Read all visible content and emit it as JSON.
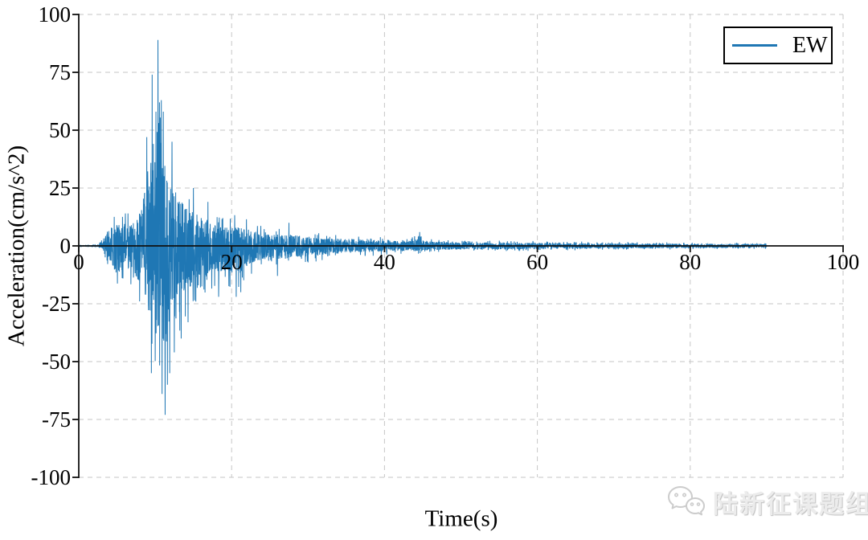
{
  "chart_data": {
    "type": "line",
    "title": "",
    "xlabel": "Time(s)",
    "ylabel": "Acceleration(cm/s^2)",
    "xlim": [
      0,
      100
    ],
    "ylim": [
      -100,
      100
    ],
    "xticks": [
      0,
      20,
      40,
      60,
      80,
      100
    ],
    "yticks": [
      100,
      75,
      50,
      25,
      0,
      -25,
      -50,
      -75,
      -100
    ],
    "grid": true,
    "grid_style": "dashed",
    "grid_color": "#c6c6c6",
    "axis_color": "#111111",
    "legend": {
      "position": "upper right",
      "entries": [
        {
          "label": "EW",
          "color": "#1f77b4"
        }
      ]
    },
    "series": [
      {
        "name": "EW",
        "color": "#1f77b4",
        "signal": {
          "t_start": 0,
          "t_end": 90,
          "dt": 0.02,
          "peak_acceleration": 89,
          "min_acceleration": -73,
          "peak_time_s": 10.35,
          "envelope": [
            [
              0,
              0.15,
              0.15
            ],
            [
              2.6,
              0.5,
              0.5
            ],
            [
              3.2,
              6,
              5
            ],
            [
              4,
              12,
              10
            ],
            [
              5,
              15,
              20
            ],
            [
              6,
              16,
              15
            ],
            [
              7,
              15,
              18
            ],
            [
              7.8,
              20,
              24
            ],
            [
              8.4,
              32,
              30
            ],
            [
              8.8,
              48,
              38
            ],
            [
              9.4,
              62,
              54
            ],
            [
              9.8,
              74,
              58
            ],
            [
              10.4,
              89,
              64
            ],
            [
              11,
              64,
              70
            ],
            [
              11.4,
              56,
              73
            ],
            [
              12,
              46,
              50
            ],
            [
              12.6,
              39,
              44
            ],
            [
              13.2,
              32,
              40
            ],
            [
              14,
              28,
              32
            ],
            [
              15,
              24,
              26
            ],
            [
              16,
              20,
              22
            ],
            [
              17,
              18,
              22
            ],
            [
              18,
              14,
              19
            ],
            [
              19,
              13,
              17
            ],
            [
              20,
              14,
              19
            ],
            [
              21,
              13,
              20
            ],
            [
              22,
              12,
              15
            ],
            [
              23,
              10,
              12
            ],
            [
              25,
              8,
              9
            ],
            [
              27,
              8,
              9
            ],
            [
              29,
              7,
              8
            ],
            [
              31,
              6,
              7
            ],
            [
              33,
              5.5,
              6
            ],
            [
              35,
              5,
              5
            ],
            [
              37,
              4.5,
              4.5
            ],
            [
              40,
              3.8,
              4
            ],
            [
              43,
              3.2,
              3.4
            ],
            [
              44.5,
              5,
              3.5
            ],
            [
              46,
              3,
              3
            ],
            [
              48,
              2.8,
              2.8
            ],
            [
              50,
              2.5,
              2.5
            ],
            [
              53,
              2.4,
              2.4
            ],
            [
              56,
              2.3,
              2.3
            ],
            [
              60,
              2.1,
              2.1
            ],
            [
              65,
              1.9,
              1.9
            ],
            [
              70,
              1.7,
              1.7
            ],
            [
              75,
              1.6,
              1.6
            ],
            [
              80,
              1.5,
              1.5
            ],
            [
              85,
              1.4,
              1.4
            ],
            [
              90,
              1.3,
              1.3
            ]
          ],
          "peaks": [
            [
              8.9,
              47
            ],
            [
              9.5,
              -55
            ],
            [
              9.6,
              74
            ],
            [
              10.1,
              58
            ],
            [
              10.35,
              89
            ],
            [
              10.55,
              62
            ],
            [
              10.8,
              63
            ],
            [
              10.9,
              -64
            ],
            [
              11.05,
              58
            ],
            [
              11.3,
              -73
            ],
            [
              11.6,
              -60
            ],
            [
              11.9,
              -55
            ],
            [
              12.2,
              45
            ],
            [
              12.5,
              -46
            ],
            [
              13.4,
              -40
            ],
            [
              14.3,
              -33
            ],
            [
              15.0,
              25
            ],
            [
              16.9,
              19
            ],
            [
              18.3,
              -22
            ],
            [
              20.6,
              -22
            ],
            [
              21.2,
              -20
            ],
            [
              26,
              -13
            ],
            [
              27.5,
              10
            ],
            [
              44.6,
              6
            ]
          ]
        }
      }
    ]
  },
  "watermark": {
    "icon": "wechat-icon",
    "text": "陆新征课题组"
  }
}
